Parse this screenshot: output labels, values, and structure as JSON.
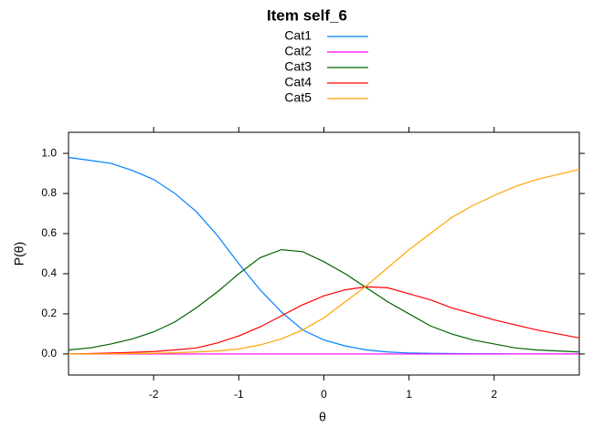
{
  "chart_data": {
    "type": "line",
    "title": "Item self_6",
    "xlabel": "θ",
    "ylabel": "P(θ)",
    "x": [
      -3,
      -2.75,
      -2.5,
      -2.25,
      -2,
      -1.75,
      -1.5,
      -1.25,
      -1,
      -0.75,
      -0.5,
      -0.25,
      0,
      0.25,
      0.5,
      0.75,
      1,
      1.25,
      1.5,
      1.75,
      2,
      2.25,
      2.5,
      2.75,
      3
    ],
    "series": [
      {
        "name": "Cat1",
        "color": "#0080ff",
        "values": [
          0.98,
          0.965,
          0.95,
          0.915,
          0.87,
          0.8,
          0.71,
          0.59,
          0.45,
          0.32,
          0.21,
          0.12,
          0.07,
          0.04,
          0.02,
          0.01,
          0.005,
          0.003,
          0.002,
          0.001,
          0.001,
          0,
          0,
          0,
          0
        ]
      },
      {
        "name": "Cat2",
        "color": "#ff00ff",
        "values": [
          0,
          0,
          0,
          0,
          0,
          0,
          0,
          0,
          0,
          0,
          0,
          0,
          0,
          0,
          0,
          0,
          0,
          0,
          0,
          0,
          0,
          0,
          0,
          0,
          0
        ]
      },
      {
        "name": "Cat3",
        "color": "#006400",
        "values": [
          0.02,
          0.03,
          0.05,
          0.075,
          0.11,
          0.16,
          0.23,
          0.31,
          0.4,
          0.48,
          0.52,
          0.51,
          0.46,
          0.4,
          0.33,
          0.26,
          0.2,
          0.14,
          0.1,
          0.07,
          0.05,
          0.03,
          0.02,
          0.015,
          0.01
        ]
      },
      {
        "name": "Cat4",
        "color": "#ff0000",
        "values": [
          0,
          0.002,
          0.005,
          0.008,
          0.012,
          0.02,
          0.03,
          0.055,
          0.09,
          0.135,
          0.19,
          0.245,
          0.29,
          0.32,
          0.335,
          0.33,
          0.3,
          0.27,
          0.23,
          0.2,
          0.17,
          0.145,
          0.12,
          0.1,
          0.08
        ]
      },
      {
        "name": "Cat5",
        "color": "#ffa500",
        "values": [
          0,
          0,
          0.001,
          0.002,
          0.003,
          0.006,
          0.01,
          0.015,
          0.025,
          0.045,
          0.075,
          0.12,
          0.18,
          0.26,
          0.34,
          0.43,
          0.52,
          0.6,
          0.68,
          0.74,
          0.79,
          0.835,
          0.87,
          0.895,
          0.92
        ]
      }
    ],
    "xlim": [
      -3,
      3
    ],
    "ylim": [
      -0.105,
      1.105
    ],
    "xticks": [
      -2,
      -1,
      0,
      1,
      2
    ],
    "yticks": [
      {
        "value": 0,
        "label": "0.0"
      },
      {
        "value": 0.2,
        "label": "0.2"
      },
      {
        "value": 0.4,
        "label": "0.4"
      },
      {
        "value": 0.6,
        "label": "0.6"
      },
      {
        "value": 0.8,
        "label": "0.8"
      },
      {
        "value": 1,
        "label": "1.0"
      }
    ],
    "legend": "top"
  }
}
